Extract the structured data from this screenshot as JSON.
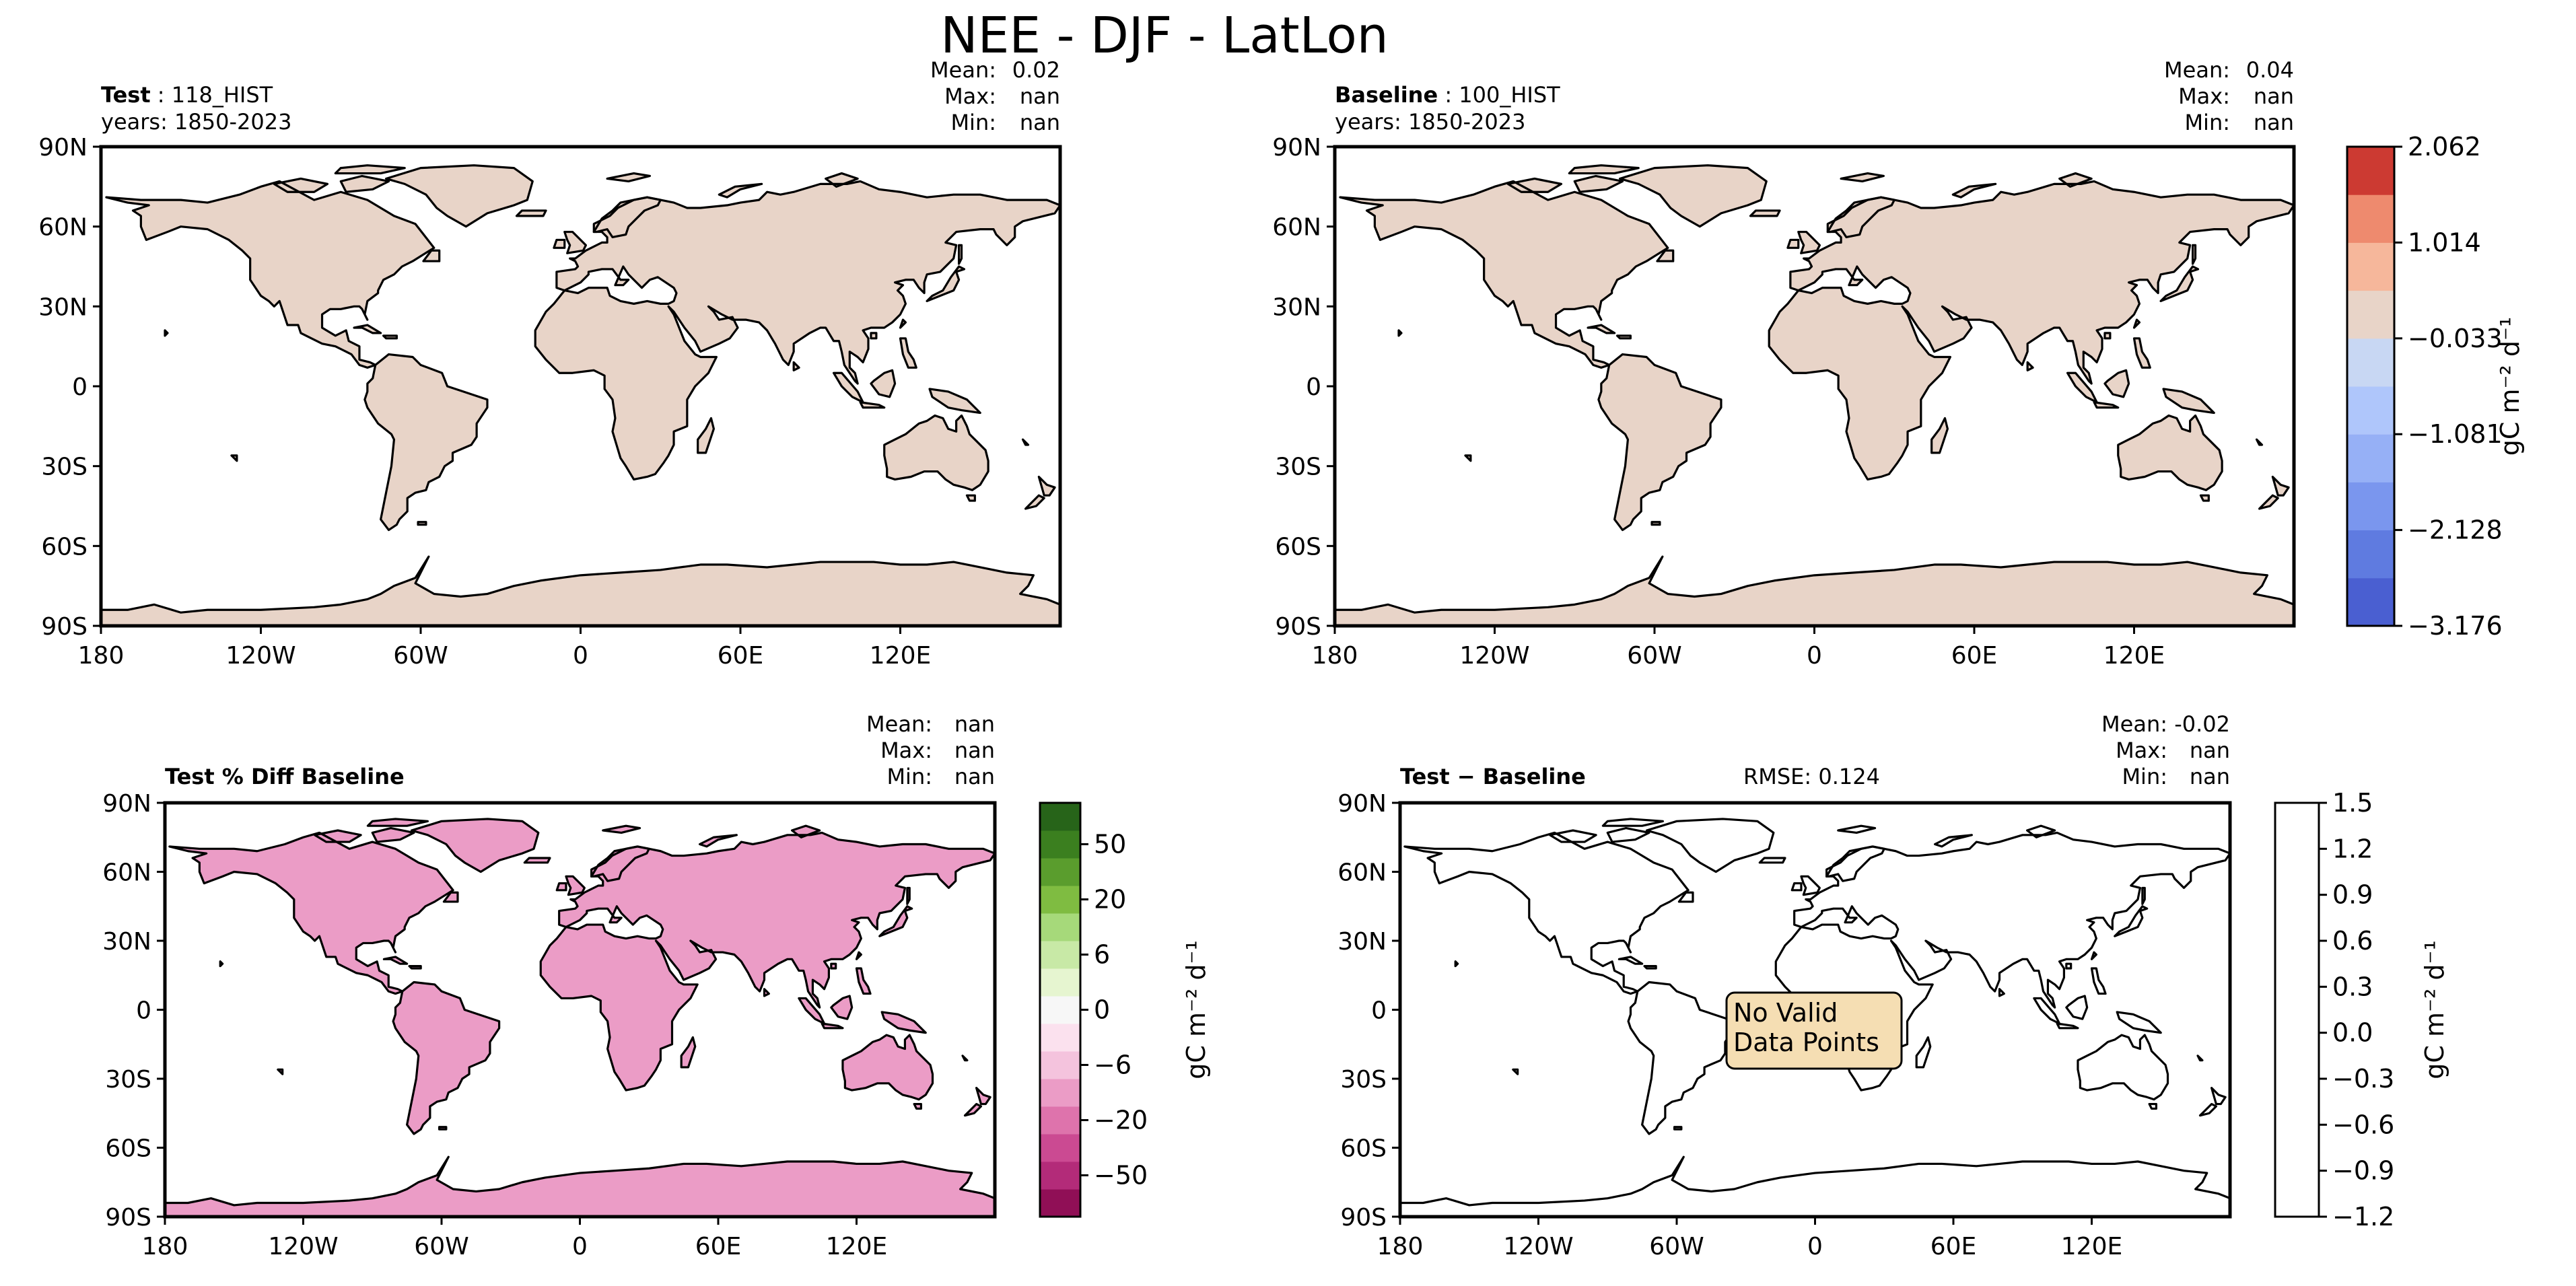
{
  "chart_data": {
    "type": "heatmap",
    "title": "NEE - DJF - LatLon",
    "lon_ticks": [
      "180",
      "120W",
      "60W",
      "0",
      "60E",
      "120E"
    ],
    "lat_ticks": [
      "90N",
      "60N",
      "30N",
      "0",
      "30S",
      "60S",
      "90S"
    ],
    "panels": [
      {
        "id": "test",
        "title_bold": "Test",
        "title_rest": " : 118_HIST",
        "years": "years: 1850-2023",
        "stats": [
          {
            "label": "Mean:",
            "value": "0.02"
          },
          {
            "label": "Max:",
            "value": "nan"
          },
          {
            "label": "Min:",
            "value": "nan"
          }
        ],
        "rmse": "",
        "no_data_text": ""
      },
      {
        "id": "baseline",
        "title_bold": "Baseline",
        "title_rest": " : 100_HIST",
        "years": "years: 1850-2023",
        "stats": [
          {
            "label": "Mean:",
            "value": "0.04"
          },
          {
            "label": "Max:",
            "value": "nan"
          },
          {
            "label": "Min:",
            "value": "nan"
          }
        ],
        "rmse": "",
        "no_data_text": ""
      },
      {
        "id": "pctdiff",
        "title_bold": "Test % Diff Baseline",
        "title_rest": "",
        "years": "",
        "stats": [
          {
            "label": "Mean:",
            "value": "nan"
          },
          {
            "label": "Max:",
            "value": "nan"
          },
          {
            "label": "Min:",
            "value": "nan"
          }
        ],
        "rmse": "",
        "no_data_text": ""
      },
      {
        "id": "diff",
        "title_bold": "Test − Baseline",
        "title_rest": "",
        "years": "",
        "stats": [
          {
            "label": "Mean:",
            "value": "-0.02"
          },
          {
            "label": "Max:",
            "value": "nan"
          },
          {
            "label": "Min:",
            "value": "nan"
          }
        ],
        "rmse": "RMSE: 0.124",
        "no_data_text": "No Valid\nData Points"
      }
    ],
    "colorbars": [
      {
        "id": "main",
        "label": "gC m⁻² d⁻¹",
        "colors": [
          "#4a5fd1",
          "#5f7be0",
          "#7a96ee",
          "#96b0f6",
          "#afc6fb",
          "#c8d7f3",
          "#e8d4c8",
          "#f6b79b",
          "#ee8a6e",
          "#cc3a32"
        ],
        "ticks": [
          "2.062",
          "1.014",
          "−0.033",
          "−1.081",
          "−2.128",
          "−3.176"
        ]
      },
      {
        "id": "pct",
        "label": "gC m⁻² d⁻¹",
        "colors": [
          "#900f56",
          "#b32b79",
          "#cb4a92",
          "#de73ac",
          "#eb9cc6",
          "#f4c3dd",
          "#fbe1ee",
          "#f7f7f7",
          "#e6f5d0",
          "#c8e9a6",
          "#a6d97a",
          "#7fbc41",
          "#5a9d2d",
          "#3b7f1f",
          "#276419"
        ],
        "ticks": [
          "50",
          "20",
          "6",
          "0",
          "−6",
          "−20",
          "−50"
        ]
      },
      {
        "id": "diff",
        "label": "gC m⁻² d⁻¹",
        "colors": [
          "#ffffff"
        ],
        "ticks": [
          "1.5",
          "1.2",
          "0.9",
          "0.6",
          "0.3",
          "0.0",
          "−0.3",
          "−0.6",
          "−0.9",
          "−1.2"
        ]
      }
    ]
  },
  "colors": {
    "land_neutral": "#e8d4c8",
    "land_pos": "#f6b79b",
    "land_pos_strong": "#ee8a6e",
    "land_neg": "#c8d7f3",
    "land_neg_strong": "#7a96ee",
    "pct_pink": "#cb4a92",
    "pct_green": "#7fbc41",
    "no_data_box": "#f5deb3"
  }
}
